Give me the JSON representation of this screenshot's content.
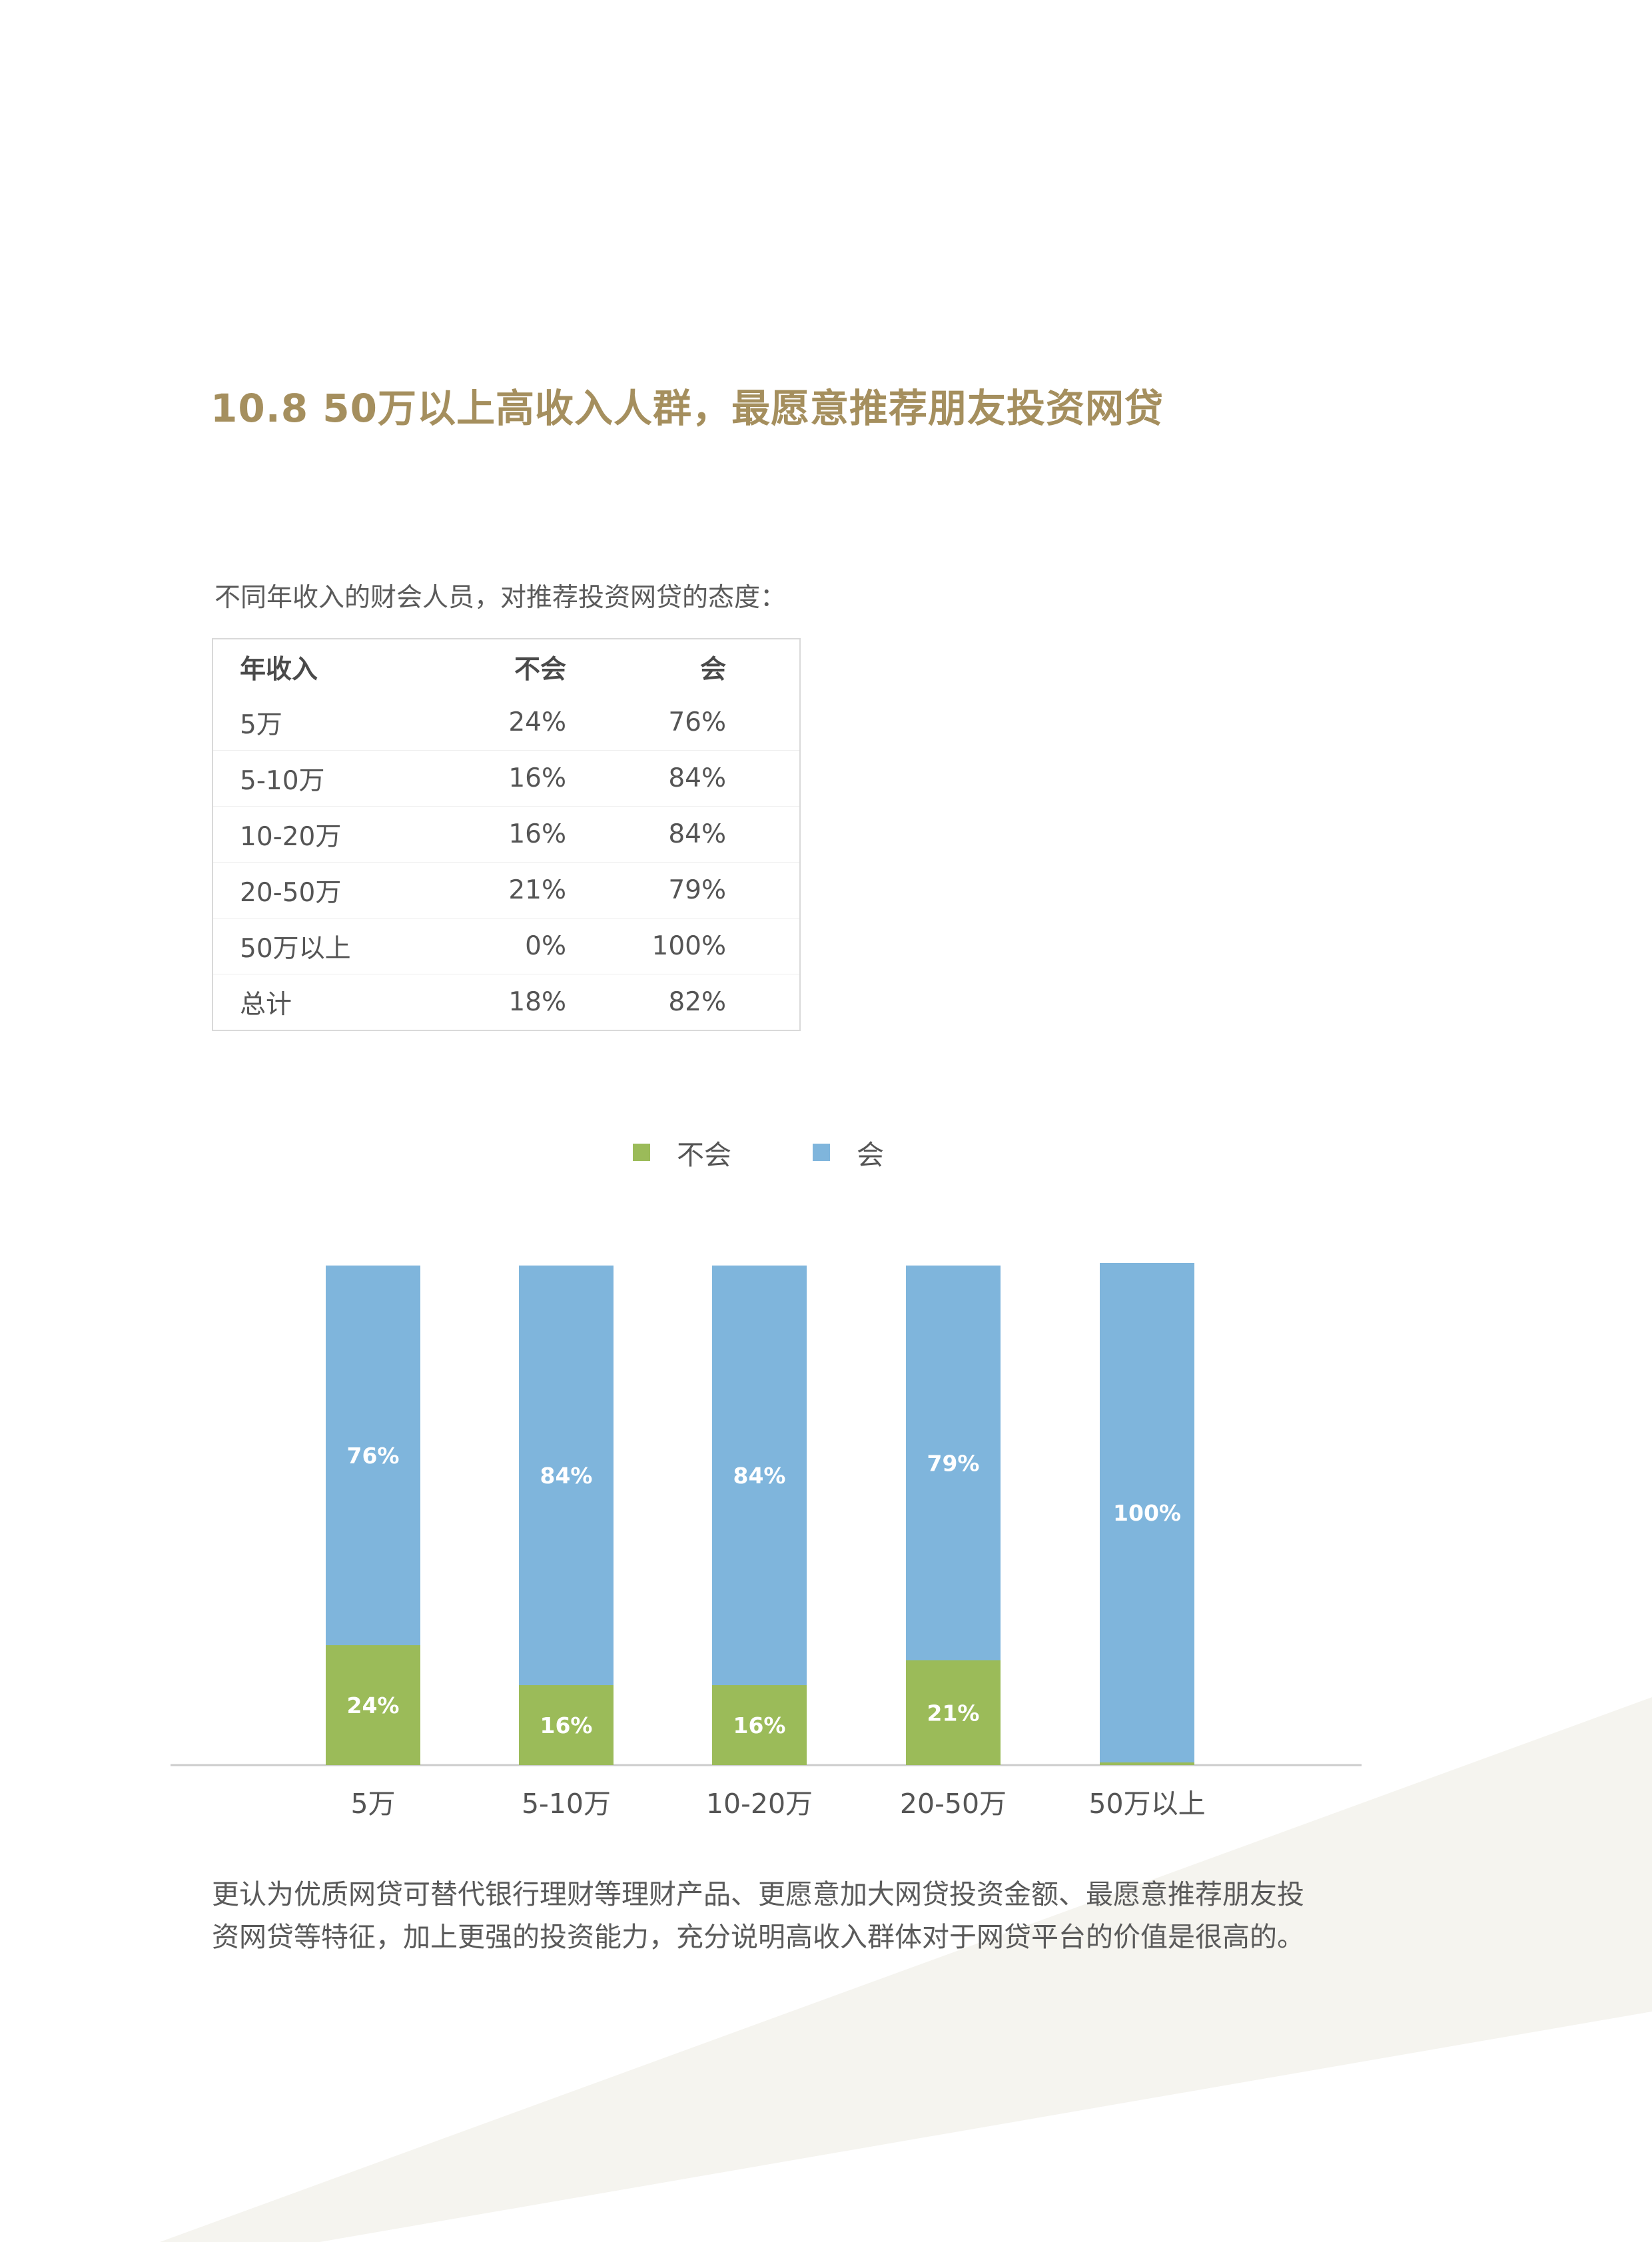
{
  "heading": "10.8  50万以上高收入人群，最愿意推荐朋友投资网贷",
  "intro": "不同年收入的财会人员，对推荐投资网贷的态度：",
  "table": {
    "headers": [
      "年收入",
      "不会",
      "会"
    ],
    "rows": [
      [
        "5万",
        "24%",
        "76%"
      ],
      [
        "5-10万",
        "16%",
        "84%"
      ],
      [
        "10-20万",
        "16%",
        "84%"
      ],
      [
        "20-50万",
        "21%",
        "79%"
      ],
      [
        "50万以上",
        "0%",
        "100%"
      ],
      [
        "总计",
        "18%",
        "82%"
      ]
    ]
  },
  "chart_data": {
    "type": "bar",
    "stacked": true,
    "categories": [
      "5万",
      "5-10万",
      "10-20万",
      "20-50万",
      "50万以上"
    ],
    "series": [
      {
        "name": "不会",
        "values": [
          24,
          16,
          16,
          21,
          0
        ],
        "labels": [
          "24%",
          "16%",
          "16%",
          "21%",
          ""
        ],
        "color": "#9bbb59"
      },
      {
        "name": "会",
        "values": [
          76,
          84,
          84,
          79,
          100
        ],
        "labels": [
          "76%",
          "84%",
          "84%",
          "79%",
          "100%"
        ],
        "color": "#7fb5dc"
      }
    ],
    "ylim": [
      0,
      100
    ],
    "legend": "top-center",
    "grid": false
  },
  "body_text": "更认为优质网贷可替代银行理财等理财产品、更愿意加大网贷投资金额、最愿意推荐朋友投资网贷等特征，加上更强的投资能力，充分说明高收入群体对于网贷平台的价值是很高的。",
  "colors": {
    "heading": "#a58f5e",
    "decor": "#f5f4ef",
    "axis": "#cccccc"
  }
}
